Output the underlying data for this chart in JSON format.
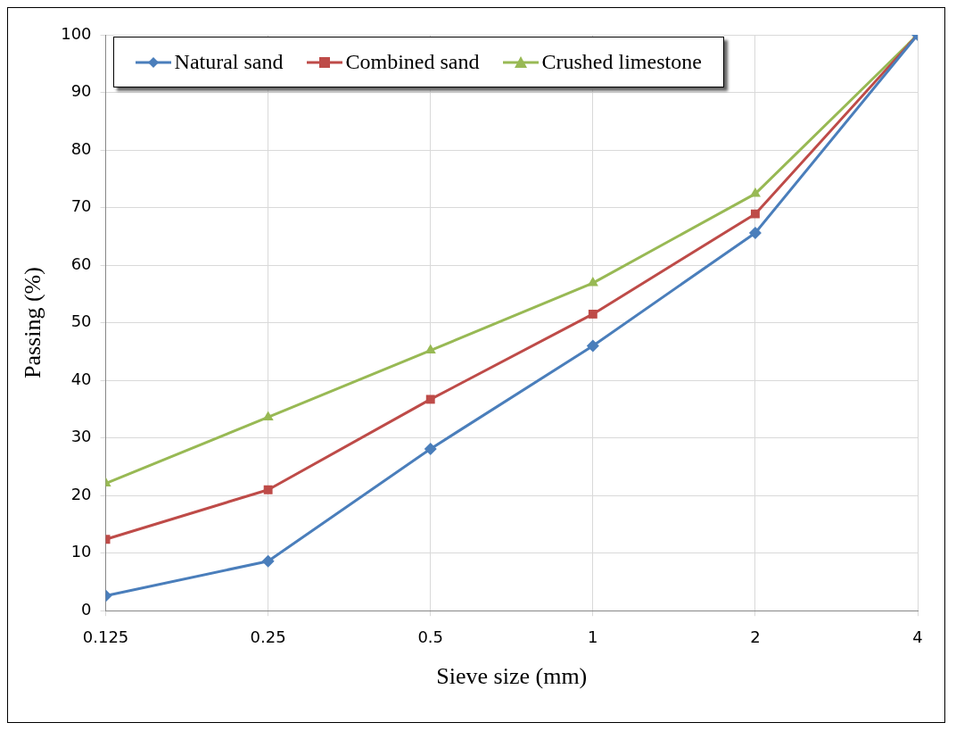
{
  "chart_data": {
    "type": "line",
    "xlabel": "Sieve size (mm)",
    "ylabel": "Passing (%)",
    "x": [
      0.125,
      0.25,
      0.5,
      1,
      2,
      4
    ],
    "series": [
      {
        "name": "Natural sand",
        "color": "#4a7ebb",
        "marker": "diamond",
        "values": [
          2.6,
          8.6,
          28.1,
          46.0,
          65.6,
          100
        ]
      },
      {
        "name": "Combined sand",
        "color": "#be4b48",
        "marker": "square",
        "values": [
          12.4,
          21.0,
          36.7,
          51.5,
          68.9,
          100
        ]
      },
      {
        "name": "Crushed limestone",
        "color": "#98b954",
        "marker": "triangle",
        "values": [
          22.1,
          33.6,
          45.2,
          56.9,
          72.4,
          100
        ]
      }
    ],
    "log": "x",
    "xlim": [
      0.125,
      4
    ],
    "xticks": [
      0.125,
      0.25,
      0.5,
      1,
      2,
      4
    ],
    "ylim": [
      0,
      100
    ],
    "yticks": [
      0,
      10,
      20,
      30,
      40,
      50,
      60,
      70,
      80,
      90,
      100
    ],
    "grid": true,
    "legend": "top left",
    "line_style": "solid"
  }
}
